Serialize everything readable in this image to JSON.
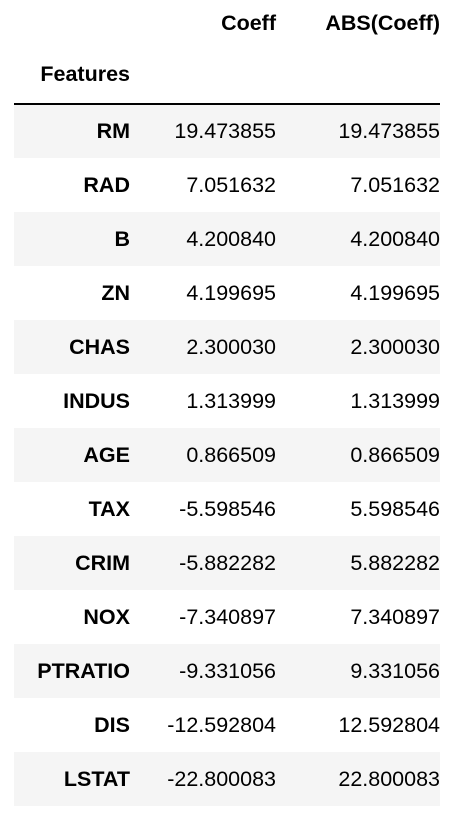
{
  "table": {
    "columns": [
      "Coeff",
      "ABS(Coeff)"
    ],
    "index_name": "Features",
    "rows": [
      {
        "feature": "RM",
        "coeff": "19.473855",
        "abs_coeff": "19.473855"
      },
      {
        "feature": "RAD",
        "coeff": "7.051632",
        "abs_coeff": "7.051632"
      },
      {
        "feature": "B",
        "coeff": "4.200840",
        "abs_coeff": "4.200840"
      },
      {
        "feature": "ZN",
        "coeff": "4.199695",
        "abs_coeff": "4.199695"
      },
      {
        "feature": "CHAS",
        "coeff": "2.300030",
        "abs_coeff": "2.300030"
      },
      {
        "feature": "INDUS",
        "coeff": "1.313999",
        "abs_coeff": "1.313999"
      },
      {
        "feature": "AGE",
        "coeff": "0.866509",
        "abs_coeff": "0.866509"
      },
      {
        "feature": "TAX",
        "coeff": "-5.598546",
        "abs_coeff": "5.598546"
      },
      {
        "feature": "CRIM",
        "coeff": "-5.882282",
        "abs_coeff": "5.882282"
      },
      {
        "feature": "NOX",
        "coeff": "-7.340897",
        "abs_coeff": "7.340897"
      },
      {
        "feature": "PTRATIO",
        "coeff": "-9.331056",
        "abs_coeff": "9.331056"
      },
      {
        "feature": "DIS",
        "coeff": "-12.592804",
        "abs_coeff": "12.592804"
      },
      {
        "feature": "LSTAT",
        "coeff": "-22.800083",
        "abs_coeff": "22.800083"
      }
    ]
  },
  "colors": {
    "stripe": "#f5f5f5",
    "background": "#ffffff",
    "header_rule": "#000000"
  }
}
